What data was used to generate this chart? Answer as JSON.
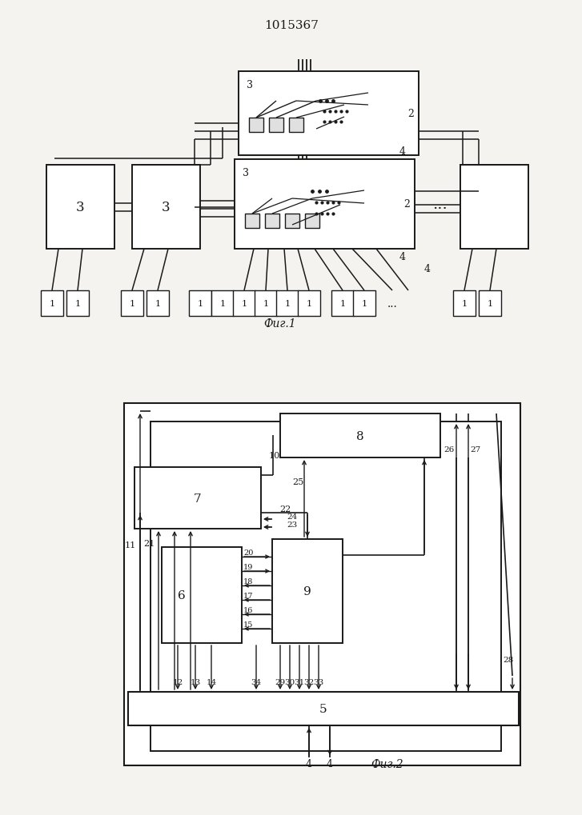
{
  "title": "1015367",
  "bg_color": "#f5f3f0",
  "line_color": "#1a1a1a",
  "fig_width": 7.07,
  "fig_height": 10.0
}
